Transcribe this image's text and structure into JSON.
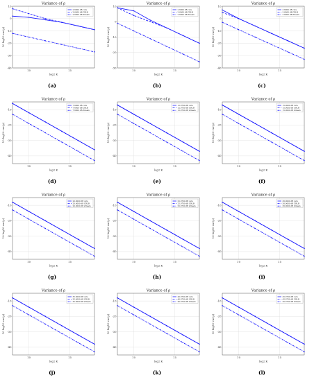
{
  "figure": {
    "panels": [
      {
        "caption": "(a)"
      },
      {
        "caption": "(b)"
      },
      {
        "caption": "(c)"
      },
      {
        "caption": "(d)"
      },
      {
        "caption": "(e)"
      },
      {
        "caption": "(f)"
      },
      {
        "caption": "(g)"
      },
      {
        "caption": "(h)"
      },
      {
        "caption": "(i)"
      },
      {
        "caption": "(j)"
      },
      {
        "caption": "(k)"
      },
      {
        "caption": "(l)"
      }
    ]
  },
  "colors": {
    "series": "#1a1aff",
    "grid": "#dddddd",
    "axis": "#555555"
  },
  "chart_data": [
    {
      "type": "line",
      "title": "Variance of ρ",
      "xlabel": "log2 K",
      "ylabel": "10 log10 var(ρ)",
      "xlim": [
        8,
        18
      ],
      "ylim": [
        -40,
        10
      ],
      "grid": true,
      "legend": "top-right",
      "x": [
        8,
        10,
        12,
        14,
        16,
        18
      ],
      "series": [
        {
          "name": "2.6000 dB cuts",
          "style": "solid",
          "values": [
            2,
            1,
            -1,
            -3,
            -6,
            -9
          ]
        },
        {
          "name": "2.6000 dB CRLB",
          "style": "dashed",
          "values": [
            8,
            4,
            0,
            -3,
            -6,
            -9
          ]
        },
        {
          "name": "2.6000 dB Ziteam",
          "style": "dashdot",
          "values": [
            -12,
            -15,
            -18,
            -21,
            -24,
            -27
          ]
        }
      ]
    },
    {
      "type": "line",
      "title": "Variance of ρ",
      "xlabel": "log2 K",
      "ylabel": "10 log10 var(ρ)",
      "xlim": [
        8,
        18
      ],
      "ylim": [
        -30,
        10
      ],
      "grid": true,
      "legend": "top-right",
      "x": [
        8,
        10,
        12,
        14,
        16,
        18
      ],
      "series": [
        {
          "name": "2.6000 dB cuts",
          "style": "solid",
          "values": [
            9,
            7,
            1,
            -4,
            -9,
            -14
          ]
        },
        {
          "name": "2.6000 dB CRLB",
          "style": "dashed",
          "values": [
            9,
            4,
            0,
            -4,
            -9,
            -14
          ]
        },
        {
          "name": "2.6000 dB Ziteam",
          "style": "dashdot",
          "values": [
            -1,
            -6,
            -11,
            -16,
            -21,
            -26
          ]
        }
      ]
    },
    {
      "type": "line",
      "title": "Variance of ρ",
      "xlabel": "log2 K",
      "ylabel": "10 log10 var(ρ)",
      "xlim": [
        8,
        18
      ],
      "ylim": [
        -40,
        10
      ],
      "grid": true,
      "legend": "top-right",
      "x": [
        8,
        10,
        12,
        14,
        16,
        18
      ],
      "series": [
        {
          "name": "3.6000 dB cuts",
          "style": "solid",
          "values": [
            7,
            0,
            -6,
            -12,
            -18,
            -24
          ]
        },
        {
          "name": "3.6000 dB CRLB",
          "style": "dashed",
          "values": [
            5,
            0,
            -6,
            -12,
            -18,
            -24
          ]
        },
        {
          "name": "3.6000 dB Ziteam",
          "style": "dashdot",
          "values": [
            -3,
            -9,
            -15,
            -21,
            -27,
            -33
          ]
        }
      ]
    },
    {
      "type": "line",
      "title": "Variance of ρ",
      "xlabel": "log2 K",
      "ylabel": "10 log10 var(ρ)",
      "xlim": [
        8,
        18
      ],
      "ylim": [
        -45,
        -5
      ],
      "grid": true,
      "legend": "top-right",
      "x": [
        8,
        10,
        12,
        14,
        16,
        18
      ],
      "series": [
        {
          "name": "7.6000 dB cuts",
          "style": "solid",
          "values": [
            -6,
            -12,
            -18,
            -24,
            -30,
            -36
          ]
        },
        {
          "name": "7.6000 dB CRLB",
          "style": "dashed",
          "values": [
            -6,
            -12,
            -18,
            -24,
            -30,
            -36
          ]
        },
        {
          "name": "7.6000 dB Ziteam",
          "style": "dashdot",
          "values": [
            -13,
            -19,
            -25,
            -31,
            -37,
            -43
          ]
        }
      ]
    },
    {
      "type": "line",
      "title": "Variance of ρ",
      "xlabel": "log2 K",
      "ylabel": "10 log10 var(ρ)",
      "xlim": [
        8,
        18
      ],
      "ylim": [
        -45,
        -5
      ],
      "grid": true,
      "legend": "top-right",
      "x": [
        8,
        10,
        12,
        14,
        16,
        18
      ],
      "series": [
        {
          "name": "12.0700 dB cuts",
          "style": "solid",
          "values": [
            -7,
            -13,
            -19,
            -25,
            -31,
            -37
          ]
        },
        {
          "name": "12.0700 dB CRLB",
          "style": "dashed",
          "values": [
            -7,
            -13,
            -19,
            -25,
            -31,
            -37
          ]
        },
        {
          "name": "12.0700 dB Ziteam",
          "style": "dashdot",
          "values": [
            -13,
            -19,
            -25,
            -31,
            -37,
            -43
          ]
        }
      ]
    },
    {
      "type": "line",
      "title": "Variance of ρ",
      "xlabel": "log2 K",
      "ylabel": "10 log10 var(ρ)",
      "xlim": [
        8,
        18
      ],
      "ylim": [
        -45,
        -5
      ],
      "grid": true,
      "legend": "top-right",
      "x": [
        8,
        10,
        12,
        14,
        16,
        18
      ],
      "series": [
        {
          "name": "15.0000 dB cuts",
          "style": "solid",
          "values": [
            -7,
            -13,
            -19,
            -25,
            -31,
            -37
          ]
        },
        {
          "name": "15.0000 dB CRLB",
          "style": "dashed",
          "values": [
            -7,
            -13,
            -19,
            -25,
            -31,
            -37
          ]
        },
        {
          "name": "15.0000 dB Ziteam",
          "style": "dashdot",
          "values": [
            -13,
            -19,
            -25,
            -31,
            -37,
            -43
          ]
        }
      ]
    },
    {
      "type": "line",
      "title": "Variance of ρ",
      "xlabel": "log2 K",
      "ylabel": "10 log10 var(ρ)",
      "xlim": [
        8,
        18
      ],
      "ylim": [
        -45,
        -5
      ],
      "grid": true,
      "legend": "top-right",
      "x": [
        8,
        10,
        12,
        14,
        16,
        18
      ],
      "series": [
        {
          "name": "20.0000 dB cuts",
          "style": "solid",
          "values": [
            -8,
            -14,
            -20,
            -26,
            -32,
            -38
          ]
        },
        {
          "name": "20.0000 dB CRLB",
          "style": "dashed",
          "values": [
            -8,
            -14,
            -20,
            -26,
            -32,
            -38
          ]
        },
        {
          "name": "20.0000 dB Ziteam",
          "style": "dashdot",
          "values": [
            -13,
            -19,
            -25,
            -31,
            -37,
            -43
          ]
        }
      ]
    },
    {
      "type": "line",
      "title": "Variance of ρ",
      "xlabel": "log2 K",
      "ylabel": "10 log10 var(ρ)",
      "xlim": [
        8,
        18
      ],
      "ylim": [
        -45,
        -5
      ],
      "grid": true,
      "legend": "top-right",
      "x": [
        8,
        10,
        12,
        14,
        16,
        18
      ],
      "series": [
        {
          "name": "25.0700 dB cuts",
          "style": "solid",
          "values": [
            -8,
            -14,
            -20,
            -26,
            -32,
            -38
          ]
        },
        {
          "name": "25.0700 dB CRLB",
          "style": "dashed",
          "values": [
            -8,
            -14,
            -20,
            -26,
            -32,
            -38
          ]
        },
        {
          "name": "25.0700 dB Ziteam",
          "style": "dashdot",
          "values": [
            -13,
            -19,
            -25,
            -31,
            -37,
            -43
          ]
        }
      ]
    },
    {
      "type": "line",
      "title": "Variance of ρ",
      "xlabel": "log2 K",
      "ylabel": "10 log10 var(ρ)",
      "xlim": [
        8,
        18
      ],
      "ylim": [
        -45,
        -5
      ],
      "grid": true,
      "legend": "top-right",
      "x": [
        8,
        10,
        12,
        14,
        16,
        18
      ],
      "series": [
        {
          "name": "30.0000 dB cuts",
          "style": "solid",
          "values": [
            -8,
            -14,
            -20,
            -26,
            -32,
            -38
          ]
        },
        {
          "name": "30.0000 dB CRLB",
          "style": "dashed",
          "values": [
            -8,
            -14,
            -20,
            -26,
            -32,
            -38
          ]
        },
        {
          "name": "30.0000 dB Ziteam",
          "style": "dashdot",
          "values": [
            -13,
            -19,
            -25,
            -31,
            -37,
            -43
          ]
        }
      ]
    },
    {
      "type": "line",
      "title": "Variance of ρ",
      "xlabel": "log2 K",
      "ylabel": "10 log10 var(ρ)",
      "xlim": [
        8,
        18
      ],
      "ylim": [
        -45,
        -5
      ],
      "grid": true,
      "legend": "top-right",
      "x": [
        8,
        10,
        12,
        14,
        16,
        18
      ],
      "series": [
        {
          "name": "35.0000 dB cuts",
          "style": "solid",
          "values": [
            -8,
            -14,
            -20,
            -26,
            -32,
            -38
          ]
        },
        {
          "name": "35.0000 dB CRLB",
          "style": "dashed",
          "values": [
            -8,
            -14,
            -20,
            -26,
            -32,
            -38
          ]
        },
        {
          "name": "35.0000 dB Ziteam",
          "style": "dashdot",
          "values": [
            -13,
            -19,
            -25,
            -31,
            -37,
            -43
          ]
        }
      ]
    },
    {
      "type": "line",
      "title": "Variance of ρ",
      "xlabel": "log2 K",
      "ylabel": "10 log10 var(ρ)",
      "xlim": [
        8,
        18
      ],
      "ylim": [
        -45,
        -5
      ],
      "grid": true,
      "legend": "top-right",
      "x": [
        8,
        10,
        12,
        14,
        16,
        18
      ],
      "series": [
        {
          "name": "40.0700 dB cuts",
          "style": "solid",
          "values": [
            -8,
            -14,
            -20,
            -26,
            -32,
            -38
          ]
        },
        {
          "name": "40.0700 dB CRLB",
          "style": "dashed",
          "values": [
            -8,
            -14,
            -20,
            -26,
            -32,
            -38
          ]
        },
        {
          "name": "40.0700 dB Ziteam",
          "style": "dashdot",
          "values": [
            -13,
            -19,
            -25,
            -31,
            -37,
            -43
          ]
        }
      ]
    },
    {
      "type": "line",
      "title": "Variance of ρ",
      "xlabel": "log2 K",
      "ylabel": "10 log10 var(ρ)",
      "xlim": [
        8,
        18
      ],
      "ylim": [
        -45,
        -5
      ],
      "grid": true,
      "legend": "top-right",
      "x": [
        8,
        10,
        12,
        14,
        16,
        18
      ],
      "series": [
        {
          "name": "45.0700 dB cuts",
          "style": "solid",
          "values": [
            -8,
            -14,
            -20,
            -26,
            -32,
            -38
          ]
        },
        {
          "name": "45.0700 dB CRLB",
          "style": "dashed",
          "values": [
            -8,
            -14,
            -20,
            -26,
            -32,
            -38
          ]
        },
        {
          "name": "45.0700 dB Ziteam",
          "style": "dashdot",
          "values": [
            -13,
            -19,
            -25,
            -31,
            -37,
            -43
          ]
        }
      ]
    }
  ]
}
